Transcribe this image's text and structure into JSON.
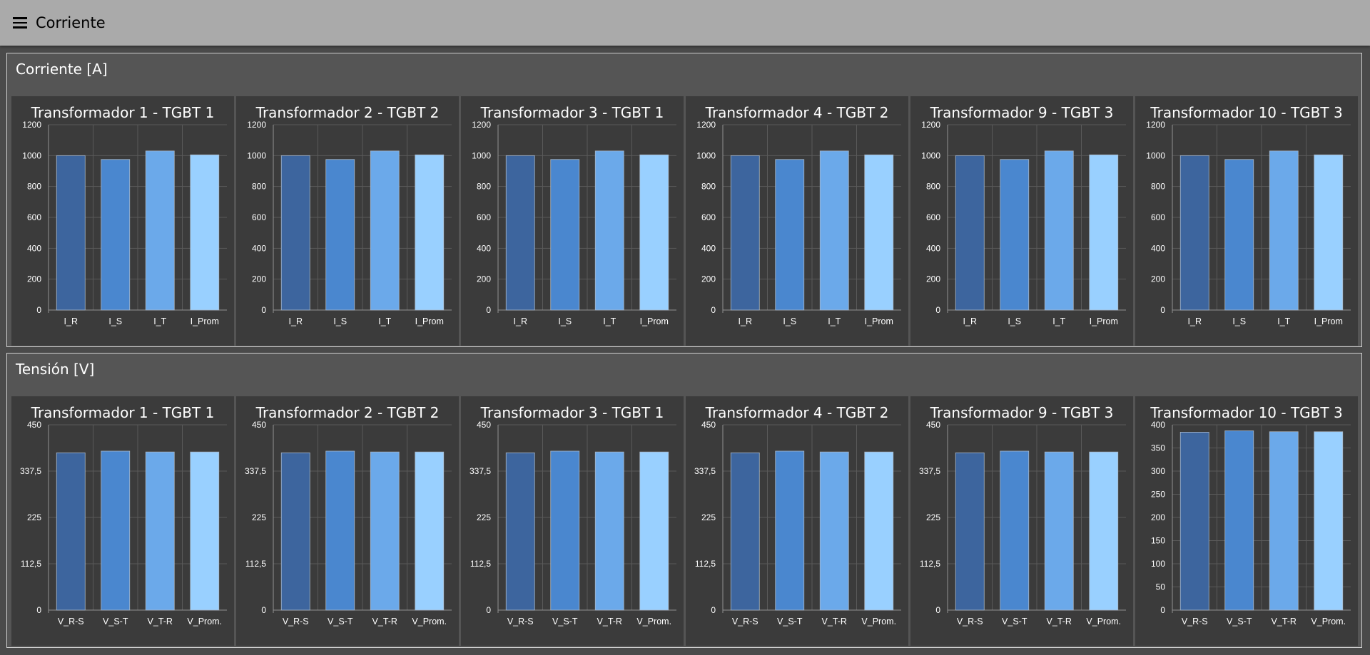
{
  "app": {
    "title": "Corriente"
  },
  "colors": {
    "series": [
      "#3d659e",
      "#4a87cf",
      "#6ba9ea",
      "#99d0ff"
    ],
    "bar_stroke": "#a9b7c8",
    "grid": "#5a5a5a",
    "axis": "#909090"
  },
  "groups": [
    {
      "title": "Corriente [A]",
      "charts": [
        {
          "chart_data": {
            "type": "bar",
            "title": "Transformador 1 - TGBT 1",
            "categories": [
              "I_R",
              "I_S",
              "I_T",
              "I_Prom"
            ],
            "values": [
              1000,
              975,
              1030,
              1005
            ],
            "ylim": [
              0,
              1200
            ],
            "yticks": [
              "0",
              "200",
              "400",
              "600",
              "800",
              "1000",
              "1200"
            ],
            "grid": true
          }
        },
        {
          "chart_data": {
            "type": "bar",
            "title": "Transformador 2 - TGBT 2",
            "categories": [
              "I_R",
              "I_S",
              "I_T",
              "I_Prom"
            ],
            "values": [
              1000,
              975,
              1030,
              1005
            ],
            "ylim": [
              0,
              1200
            ],
            "yticks": [
              "0",
              "200",
              "400",
              "600",
              "800",
              "1000",
              "1200"
            ],
            "grid": true
          }
        },
        {
          "chart_data": {
            "type": "bar",
            "title": "Transformador 3 - TGBT 1",
            "categories": [
              "I_R",
              "I_S",
              "I_T",
              "I_Prom"
            ],
            "values": [
              1000,
              975,
              1030,
              1005
            ],
            "ylim": [
              0,
              1200
            ],
            "yticks": [
              "0",
              "200",
              "400",
              "600",
              "800",
              "1000",
              "1200"
            ],
            "grid": true
          }
        },
        {
          "chart_data": {
            "type": "bar",
            "title": "Transformador 4 - TGBT 2",
            "categories": [
              "I_R",
              "I_S",
              "I_T",
              "I_Prom"
            ],
            "values": [
              1000,
              975,
              1030,
              1005
            ],
            "ylim": [
              0,
              1200
            ],
            "yticks": [
              "0",
              "200",
              "400",
              "600",
              "800",
              "1000",
              "1200"
            ],
            "grid": true
          }
        },
        {
          "chart_data": {
            "type": "bar",
            "title": "Transformador 9 - TGBT 3",
            "categories": [
              "I_R",
              "I_S",
              "I_T",
              "I_Prom"
            ],
            "values": [
              1000,
              975,
              1030,
              1005
            ],
            "ylim": [
              0,
              1200
            ],
            "yticks": [
              "0",
              "200",
              "400",
              "600",
              "800",
              "1000",
              "1200"
            ],
            "grid": true
          }
        },
        {
          "chart_data": {
            "type": "bar",
            "title": "Transformador 10 - TGBT 3",
            "categories": [
              "I_R",
              "I_S",
              "I_T",
              "I_Prom"
            ],
            "values": [
              1000,
              975,
              1030,
              1005
            ],
            "ylim": [
              0,
              1200
            ],
            "yticks": [
              "0",
              "200",
              "400",
              "600",
              "800",
              "1000",
              "1200"
            ],
            "grid": true
          }
        }
      ]
    },
    {
      "title": "Tensión [V]",
      "charts": [
        {
          "chart_data": {
            "type": "bar",
            "title": "Transformador 1 - TGBT 1",
            "categories": [
              "V_R-S",
              "V_S-T",
              "V_T-R",
              "V_Prom."
            ],
            "values": [
              382,
              386,
              384,
              384
            ],
            "ylim": [
              0,
              450
            ],
            "yticks": [
              "0",
              "112,5",
              "225",
              "337,5",
              "450"
            ],
            "grid": true
          }
        },
        {
          "chart_data": {
            "type": "bar",
            "title": "Transformador 2 - TGBT 2",
            "categories": [
              "V_R-S",
              "V_S-T",
              "V_T-R",
              "V_Prom."
            ],
            "values": [
              382,
              386,
              384,
              384
            ],
            "ylim": [
              0,
              450
            ],
            "yticks": [
              "0",
              "112,5",
              "225",
              "337,5",
              "450"
            ],
            "grid": true
          }
        },
        {
          "chart_data": {
            "type": "bar",
            "title": "Transformador 3 - TGBT 1",
            "categories": [
              "V_R-S",
              "V_S-T",
              "V_T-R",
              "V_Prom."
            ],
            "values": [
              382,
              386,
              384,
              384
            ],
            "ylim": [
              0,
              450
            ],
            "yticks": [
              "0",
              "112,5",
              "225",
              "337,5",
              "450"
            ],
            "grid": true
          }
        },
        {
          "chart_data": {
            "type": "bar",
            "title": "Transformador 4 - TGBT 2",
            "categories": [
              "V_R-S",
              "V_S-T",
              "V_T-R",
              "V_Prom."
            ],
            "values": [
              382,
              386,
              384,
              384
            ],
            "ylim": [
              0,
              450
            ],
            "yticks": [
              "0",
              "112,5",
              "225",
              "337,5",
              "450"
            ],
            "grid": true
          }
        },
        {
          "chart_data": {
            "type": "bar",
            "title": "Transformador 9 - TGBT 3",
            "categories": [
              "V_R-S",
              "V_S-T",
              "V_T-R",
              "V_Prom."
            ],
            "values": [
              382,
              386,
              384,
              384
            ],
            "ylim": [
              0,
              450
            ],
            "yticks": [
              "0",
              "112,5",
              "225",
              "337,5",
              "450"
            ],
            "grid": true
          }
        },
        {
          "chart_data": {
            "type": "bar",
            "title": "Transformador 10 - TGBT 3",
            "categories": [
              "V_R-S",
              "V_S-T",
              "V_T-R",
              "V_Prom."
            ],
            "values": [
              384,
              387,
              385,
              385
            ],
            "ylim": [
              0,
              400
            ],
            "yticks": [
              "0",
              "50",
              "100",
              "150",
              "200",
              "250",
              "300",
              "350",
              "400"
            ],
            "grid": true
          }
        }
      ]
    }
  ]
}
